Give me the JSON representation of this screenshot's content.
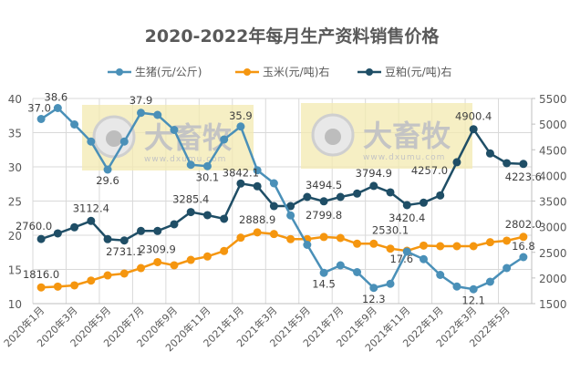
{
  "chart_data": {
    "type": "line",
    "title": "2020-2022年每月生产资料销售价格",
    "categories": [
      "2020年1月",
      "2020年2月",
      "2020年3月",
      "2020年4月",
      "2020年5月",
      "2020年6月",
      "2020年7月",
      "2020年8月",
      "2020年9月",
      "2020年10月",
      "2020年11月",
      "2020年12月",
      "2021年1月",
      "2021年2月",
      "2021年3月",
      "2021年4月",
      "2021年5月",
      "2021年6月",
      "2021年7月",
      "2021年8月",
      "2021年9月",
      "2021年10月",
      "2021年11月",
      "2021年12月",
      "2022年1月",
      "2022年2月",
      "2022年3月",
      "2022年4月",
      "2022年5月",
      "2022年6月"
    ],
    "left_axis": {
      "ylim": [
        10,
        40
      ],
      "ticks": [
        "10",
        "15",
        "20",
        "25",
        "30",
        "35",
        "40"
      ]
    },
    "right_axis": {
      "ylim": [
        1500,
        5500
      ],
      "ticks": [
        "1500",
        "2000",
        "2500",
        "3000",
        "3500",
        "4000",
        "4500",
        "5000",
        "5500"
      ]
    },
    "grid": true,
    "legend": "top",
    "series": [
      {
        "name": "生猪(元/公斤)",
        "axis": "left",
        "color": "#4a90b8",
        "values": [
          37.0,
          38.6,
          36.2,
          33.7,
          29.6,
          33.7,
          37.9,
          37.6,
          35.4,
          30.3,
          30.1,
          34.0,
          35.9,
          29.5,
          27.6,
          22.9,
          18.6,
          14.5,
          15.6,
          14.6,
          12.3,
          12.9,
          17.6,
          16.5,
          14.2,
          12.5,
          12.1,
          13.2,
          15.2,
          16.8
        ],
        "labels": {
          "0": "37.0",
          "1": "38.6",
          "4": "29.6",
          "6": "37.9",
          "10": "30.1",
          "12": "35.9",
          "17": "14.5",
          "20": "12.3",
          "22": "17.6",
          "26": "12.1",
          "29": "16.8"
        }
      },
      {
        "name": "玉米(元/吨)右",
        "axis": "right",
        "color": "#f5960f",
        "values": [
          1816.0,
          1832,
          1856,
          1950,
          2051,
          2087,
          2193,
          2309.9,
          2247,
          2353,
          2419,
          2526,
          2786,
          2888.9,
          2857,
          2757,
          2757,
          2799.8,
          2780,
          2668,
          2668,
          2572,
          2530.1,
          2632,
          2620,
          2620,
          2620,
          2697,
          2727,
          2802.0
        ],
        "labels": {
          "0": "1816.0",
          "7": "2309.9",
          "13": "2888.9",
          "17": "2799.8",
          "21": "2530.1",
          "29": "2802.0"
        }
      },
      {
        "name": "豆粕(元/吨)右",
        "axis": "right",
        "color": "#1f4e66",
        "values": [
          2760.0,
          2869,
          2988,
          3112.4,
          2757,
          2731.1,
          2917,
          2917,
          3047,
          3285.4,
          3225,
          3154,
          3842.1,
          3788,
          3402,
          3402,
          3580,
          3494.5,
          3580,
          3646,
          3794.9,
          3669,
          3420.4,
          3468,
          3610,
          4257.0,
          4900.4,
          4428,
          4238,
          4223.6
        ],
        "labels": {
          "0": "2760.0",
          "3": "3112.4",
          "5": "2731.1",
          "9": "3285.4",
          "12": "3842.1",
          "17": "3494.5",
          "20": "3794.9",
          "22": "3420.4",
          "25": "4257.0",
          "26": "4900.4",
          "29": "4223.6"
        }
      }
    ]
  },
  "watermark": {
    "brand": "大畜牧",
    "url": "www.dxumu.com"
  }
}
